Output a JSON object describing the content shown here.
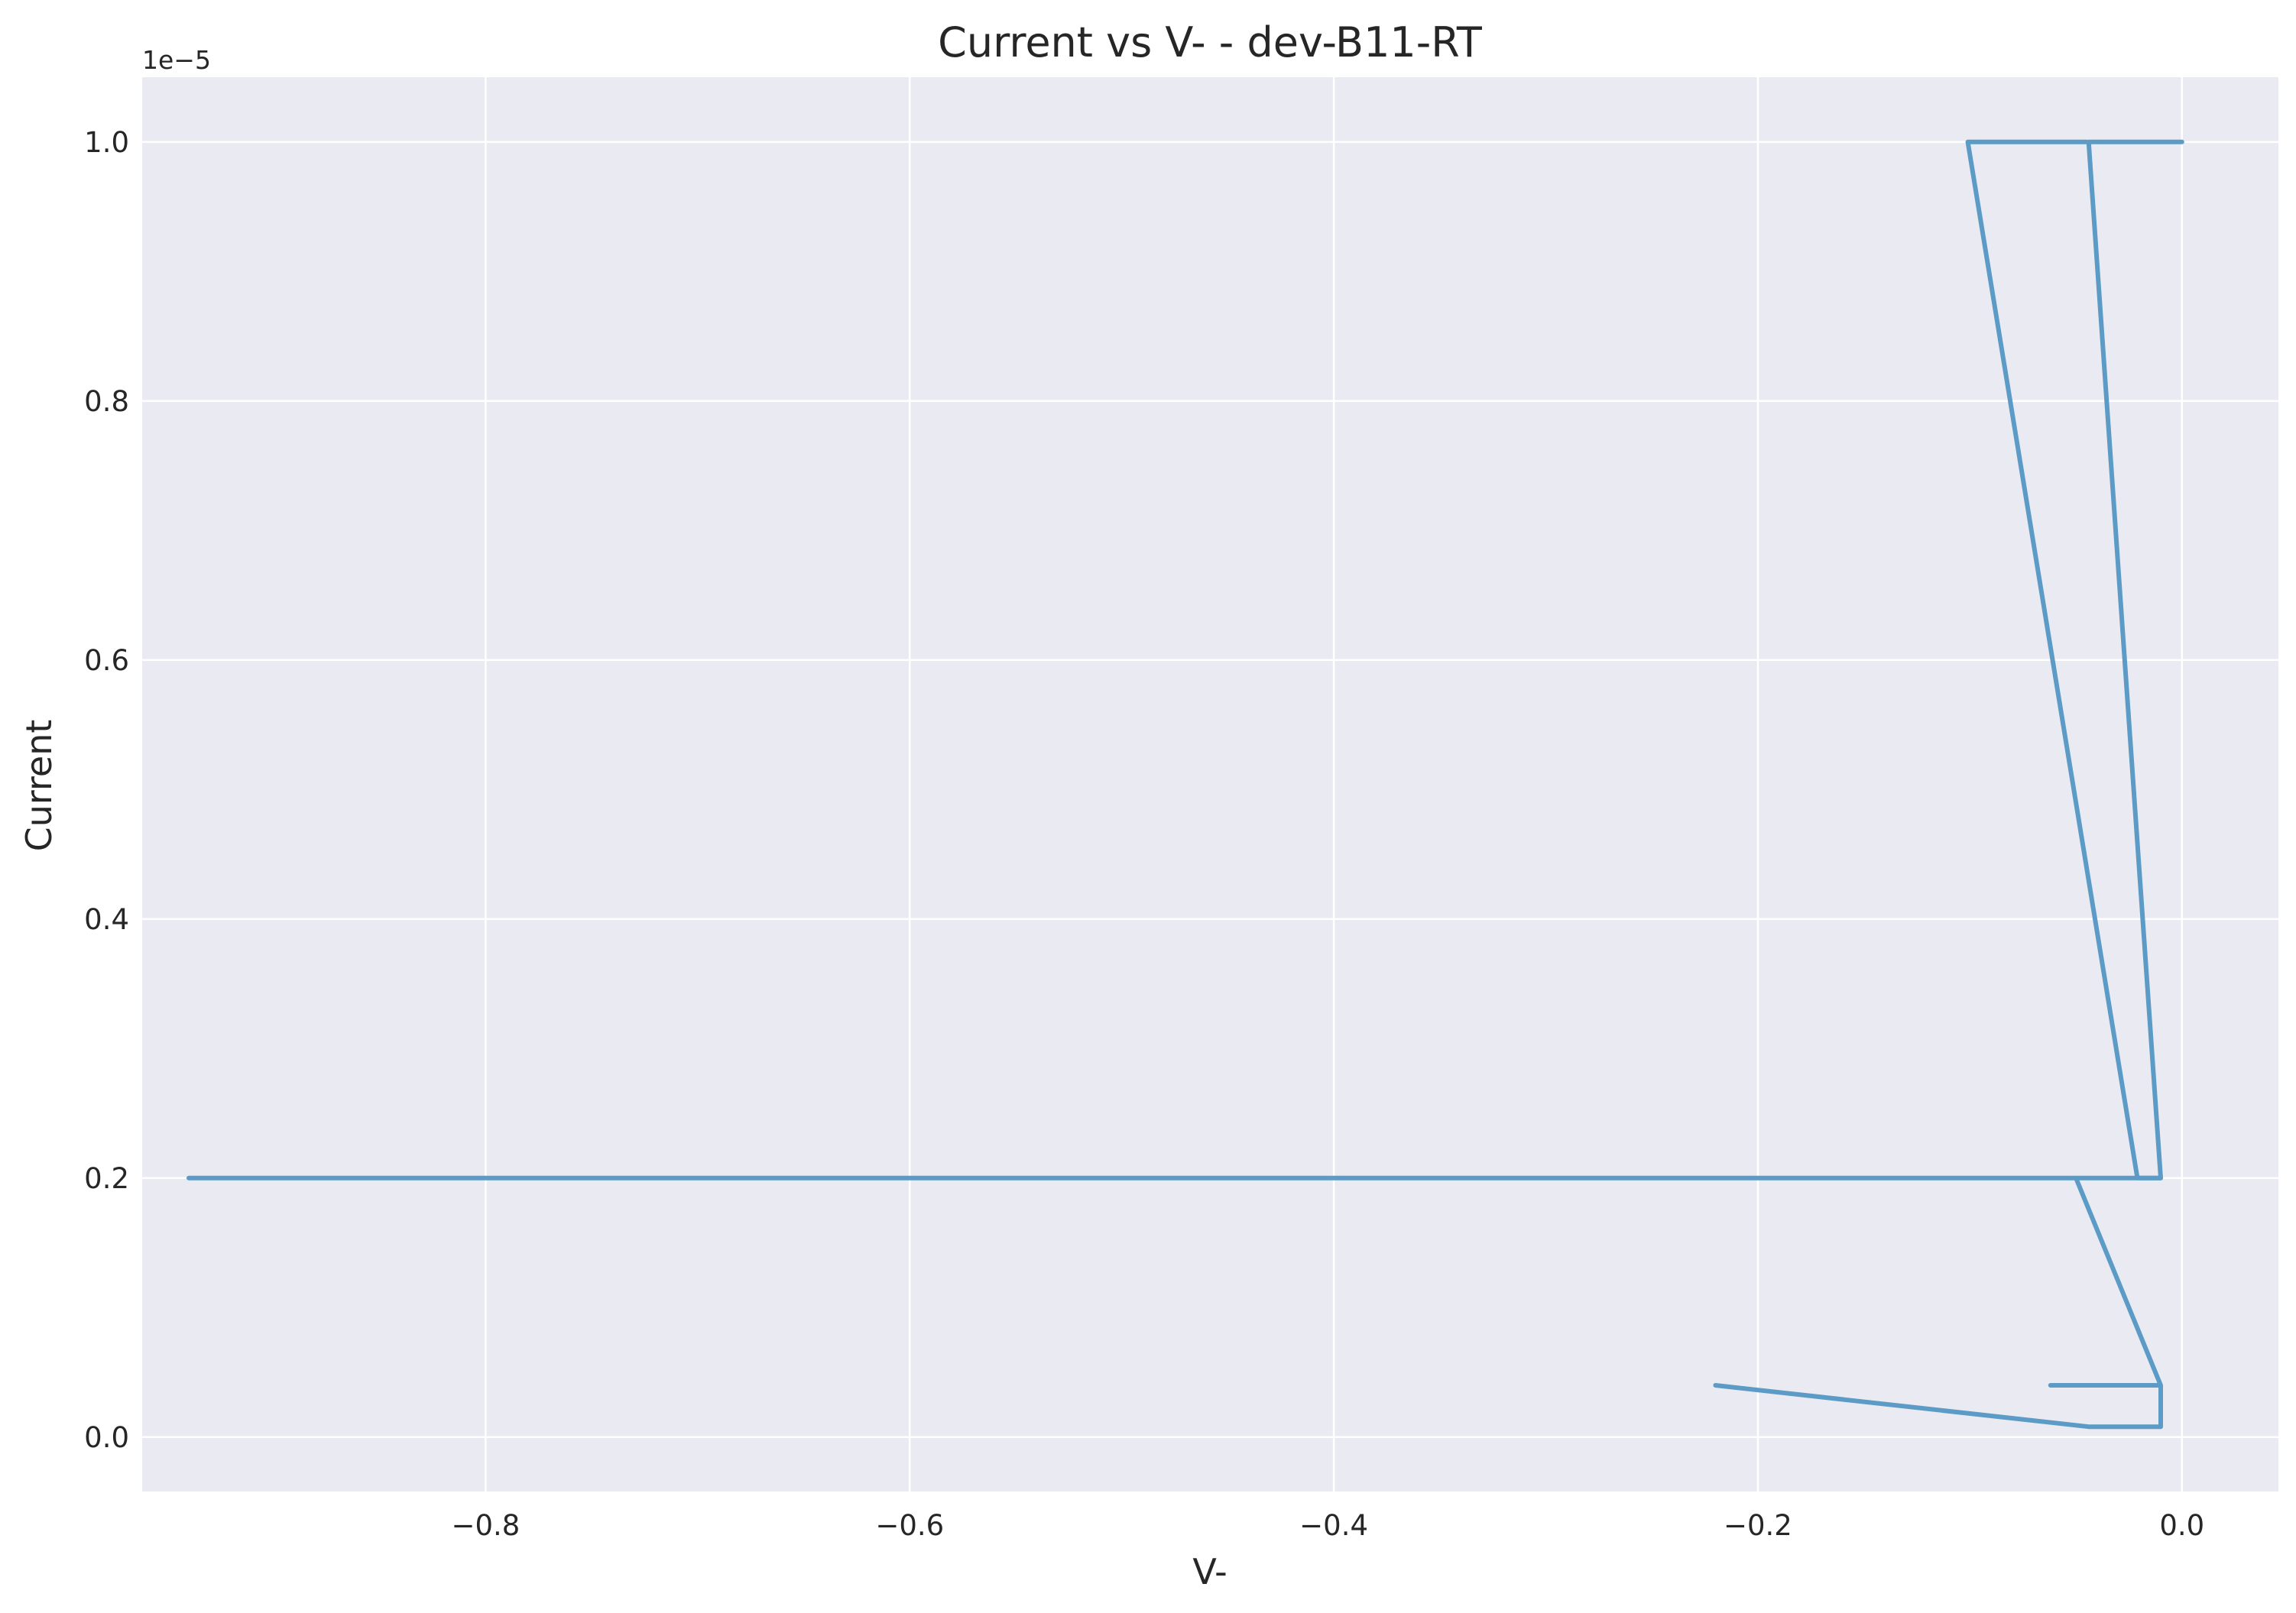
{
  "chart_data": {
    "type": "line",
    "title": "Current vs V- - dev-B11-RT",
    "xlabel": "V-",
    "ylabel": "Current",
    "y_offset_label": "1e−5",
    "xlim": [
      -0.962,
      0.0455
    ],
    "ylim": [
      -0.042,
      1.05
    ],
    "x_ticks": [
      -0.8,
      -0.6,
      -0.4,
      -0.2,
      0.0
    ],
    "x_tick_labels": [
      "−0.8",
      "−0.6",
      "−0.4",
      "−0.2",
      "0.0"
    ],
    "y_ticks": [
      0.0,
      0.2,
      0.4,
      0.6,
      0.8,
      1.0
    ],
    "y_tick_labels": [
      "0.0",
      "0.2",
      "0.4",
      "0.6",
      "0.8",
      "1.0"
    ],
    "grid": true,
    "colors": {
      "line": "#5b9bc6",
      "plot_bg": "#eaeaf2",
      "grid": "#ffffff"
    },
    "series": [
      {
        "x": [
          0.0,
          -0.044,
          -0.044,
          -0.01,
          -0.01,
          -0.94,
          -0.05,
          -0.01,
          -0.01,
          -0.062,
          -0.01,
          -0.01,
          -0.044,
          -0.22
        ],
        "y": [
          1.0,
          1.0,
          1.0,
          0.2,
          0.2,
          0.2,
          0.2,
          0.04,
          0.04,
          0.04,
          0.04,
          0.008,
          0.008,
          0.04
        ]
      },
      {
        "x": [
          -0.045,
          -0.101,
          -0.021,
          -0.01
        ],
        "y": [
          1.0,
          1.0,
          0.2,
          0.2
        ]
      }
    ]
  }
}
